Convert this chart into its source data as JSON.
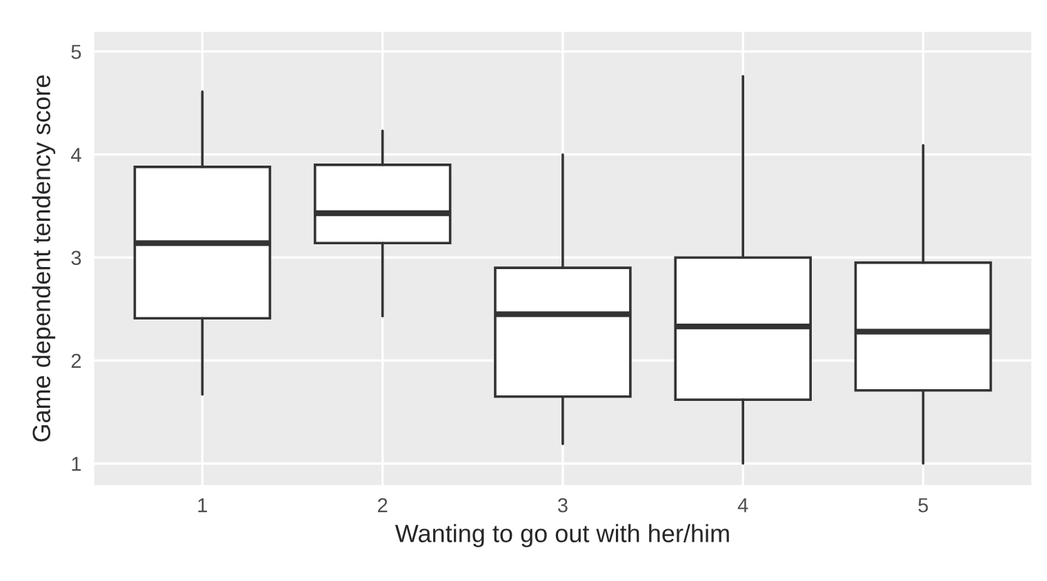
{
  "chart_data": {
    "type": "box",
    "xlabel": "Wanting to go out with her/him",
    "ylabel": "Game dependent tendency score",
    "categories": [
      "1",
      "2",
      "3",
      "4",
      "5"
    ],
    "boxes": [
      {
        "low": 1.67,
        "q1": 2.41,
        "median": 3.14,
        "q3": 3.88,
        "high": 4.61
      },
      {
        "low": 2.43,
        "q1": 3.14,
        "median": 3.43,
        "q3": 3.9,
        "high": 4.23
      },
      {
        "low": 1.19,
        "q1": 1.65,
        "median": 2.45,
        "q3": 2.9,
        "high": 4.0
      },
      {
        "low": 1.0,
        "q1": 1.62,
        "median": 2.33,
        "q3": 3.0,
        "high": 4.76
      },
      {
        "low": 1.0,
        "q1": 1.71,
        "median": 2.28,
        "q3": 2.95,
        "high": 4.09
      }
    ],
    "color": "#333333",
    "ylim": [
      0.79,
      5.19
    ],
    "yticks": [
      1,
      2,
      3,
      4,
      5
    ],
    "grid": true
  }
}
